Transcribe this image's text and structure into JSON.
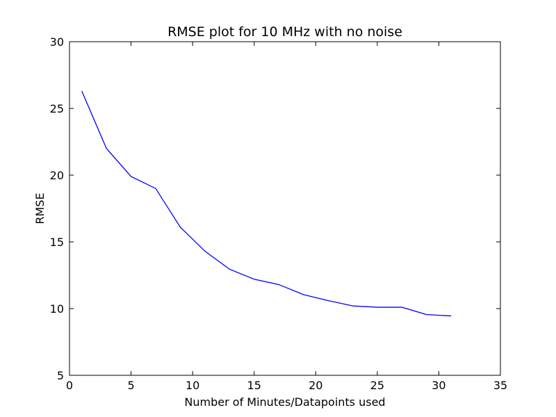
{
  "chart_data": {
    "type": "line",
    "title": "RMSE plot for 10 MHz with no noise",
    "xlabel": "Number of Minutes/Datapoints used",
    "ylabel": "RMSE",
    "xlim": [
      0,
      35
    ],
    "ylim": [
      5,
      30
    ],
    "xticks": [
      "0",
      "5",
      "10",
      "15",
      "20",
      "25",
      "30",
      "35"
    ],
    "yticks": [
      "5",
      "10",
      "15",
      "20",
      "25",
      "30"
    ],
    "grid": false,
    "legend": "none",
    "series": [
      {
        "color": "#0000ff",
        "x": [
          1,
          3,
          5,
          7,
          9,
          11,
          13,
          15,
          17,
          19,
          21,
          23,
          25,
          27,
          29,
          31
        ],
        "y": [
          26.3,
          22.0,
          19.9,
          19.0,
          16.1,
          14.3,
          12.95,
          12.2,
          11.8,
          11.05,
          10.6,
          10.2,
          10.1,
          10.1,
          9.55,
          9.45
        ]
      }
    ]
  }
}
